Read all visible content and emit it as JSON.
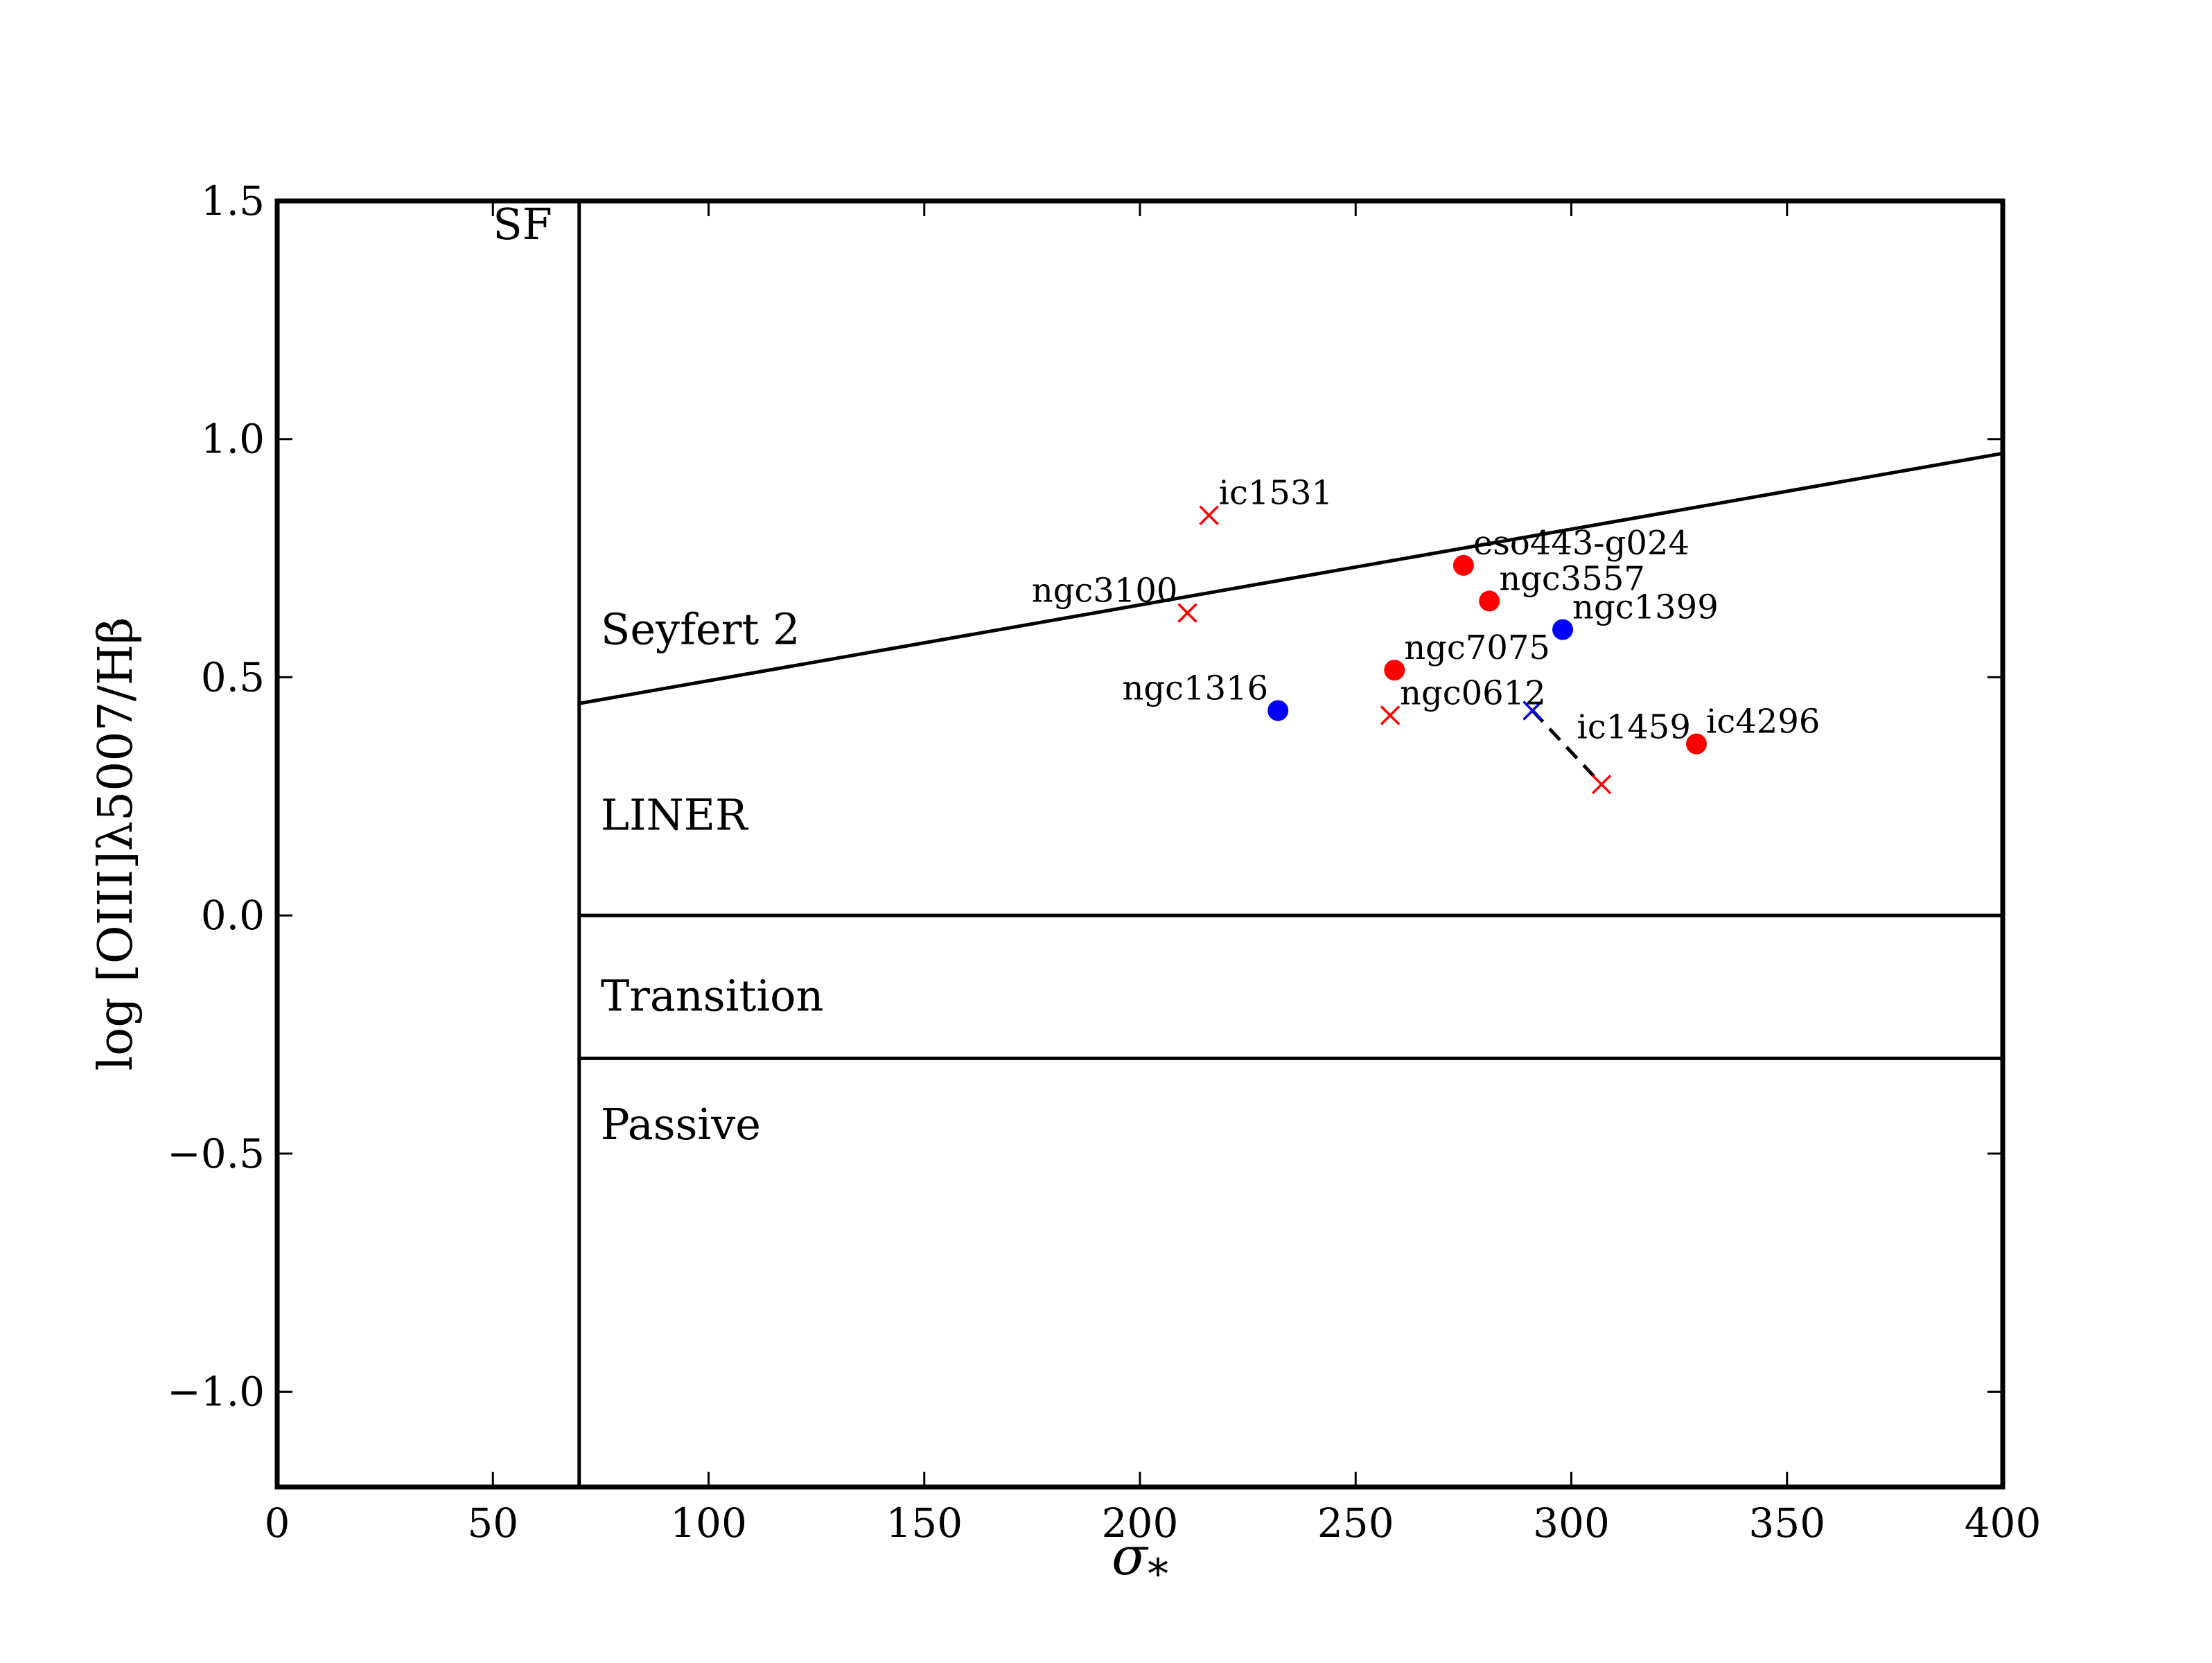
{
  "chart_data": {
    "type": "scatter",
    "title": "",
    "xlabel": "σ_*",
    "ylabel": "log [OIII]λ5007/Hβ",
    "xlim": [
      0,
      400
    ],
    "ylim": [
      -1.2,
      1.5
    ],
    "xticks": [
      0,
      50,
      100,
      150,
      200,
      250,
      300,
      350,
      400
    ],
    "xtick_labels": [
      "0",
      "50",
      "100",
      "150",
      "200",
      "250",
      "300",
      "350",
      "400"
    ],
    "yticks": [
      -1.0,
      -0.5,
      0.0,
      0.5,
      1.0,
      1.5
    ],
    "ytick_labels": [
      "−1.0",
      "−0.5",
      "0.0",
      "0.5",
      "1.0",
      "1.5"
    ],
    "grid": false,
    "dividers": {
      "sf_vertical_x": 70,
      "seyfert_liner_line": {
        "x": [
          70,
          400
        ],
        "y": [
          0.445,
          0.97
        ]
      },
      "liner_transition_y": 0.0,
      "transition_passive_y": -0.3
    },
    "regions": [
      {
        "label": "SF",
        "x": 50,
        "y": 1.42
      },
      {
        "label": "Seyfert 2",
        "x": 75,
        "y": 0.57
      },
      {
        "label": "LINER",
        "x": 75,
        "y": 0.18
      },
      {
        "label": "Transition",
        "x": 75,
        "y": -0.2
      },
      {
        "label": "Passive",
        "x": 75,
        "y": -0.47
      }
    ],
    "points": [
      {
        "name": "ic1531",
        "x": 216,
        "y": 0.84,
        "color": "#ff0000",
        "marker": "x"
      },
      {
        "name": "ngc3100",
        "x": 211,
        "y": 0.635,
        "color": "#ff0000",
        "marker": "x"
      },
      {
        "name": "eso443-g024",
        "x": 275,
        "y": 0.735,
        "color": "#ff0000",
        "marker": "o"
      },
      {
        "name": "ngc3557",
        "x": 281,
        "y": 0.66,
        "color": "#ff0000",
        "marker": "o"
      },
      {
        "name": "ngc1399",
        "x": 298,
        "y": 0.6,
        "color": "#0000ff",
        "marker": "o"
      },
      {
        "name": "ngc7075",
        "x": 259,
        "y": 0.515,
        "color": "#ff0000",
        "marker": "o"
      },
      {
        "name": "ngc1316",
        "x": 232,
        "y": 0.43,
        "color": "#0000ff",
        "marker": "o"
      },
      {
        "name": "ngc0612",
        "x": 258,
        "y": 0.42,
        "color": "#ff0000",
        "marker": "x"
      },
      {
        "name": "ic1459",
        "x": 291,
        "y": 0.43,
        "color": "#0000ff",
        "marker": "x"
      },
      {
        "name": "",
        "x": 307,
        "y": 0.275,
        "color": "#ff0000",
        "marker": "x"
      },
      {
        "name": "ic4296",
        "x": 329,
        "y": 0.36,
        "color": "#ff0000",
        "marker": "o"
      }
    ],
    "connector": {
      "from": [
        291,
        0.43
      ],
      "to": [
        307,
        0.275
      ],
      "style": "dashed",
      "color": "#000000"
    }
  }
}
